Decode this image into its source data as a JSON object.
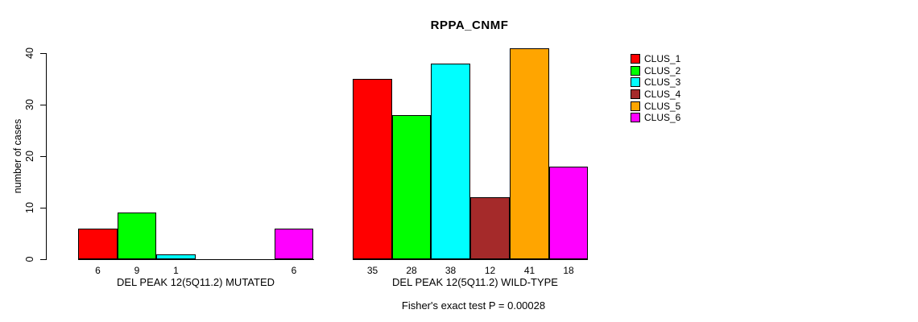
{
  "chart_data": {
    "type": "bar",
    "title": "RPPA_CNMF",
    "ylabel": "number of cases",
    "xlabel": "",
    "ylim": [
      0,
      40
    ],
    "yticks": [
      0,
      10,
      20,
      30,
      40
    ],
    "grid": false,
    "legend_position": "right",
    "categories": [
      "DEL PEAK 12(5Q11.2) MUTATED",
      "DEL PEAK 12(5Q11.2) WILD-TYPE"
    ],
    "series": [
      {
        "name": "CLUS_1",
        "color": "#FF0000",
        "values": [
          6,
          35
        ]
      },
      {
        "name": "CLUS_2",
        "color": "#00FF00",
        "values": [
          9,
          28
        ]
      },
      {
        "name": "CLUS_3",
        "color": "#00FFFF",
        "values": [
          1,
          38
        ]
      },
      {
        "name": "CLUS_4",
        "color": "#A52A2A",
        "values": [
          0,
          12
        ]
      },
      {
        "name": "CLUS_5",
        "color": "#FFA500",
        "values": [
          0,
          41
        ]
      },
      {
        "name": "CLUS_6",
        "color": "#FF00FF",
        "values": [
          6,
          18
        ]
      }
    ],
    "bar_value_labels_shown": [
      [
        "6",
        "9",
        "1",
        "",
        "",
        "6"
      ],
      [
        "35",
        "28",
        "38",
        "12",
        "41",
        "18"
      ]
    ],
    "annotation": "Fisher's exact test P = 0.00028"
  }
}
